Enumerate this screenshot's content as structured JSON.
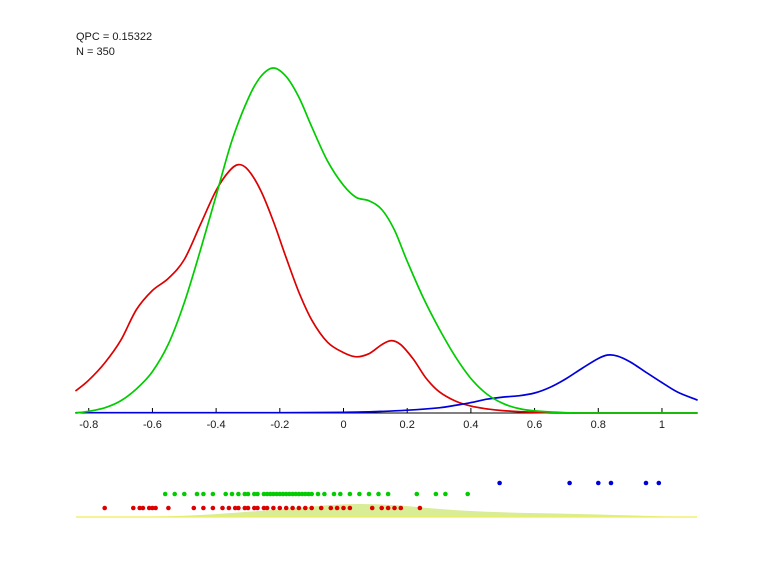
{
  "annotation": {
    "line1": "QPC = 0.15322",
    "line2": "N = 350"
  },
  "chart_data": [
    {
      "type": "line",
      "title": "",
      "xlabel": "",
      "ylabel": "",
      "grid": false,
      "legend": null,
      "xlim": [
        -0.84,
        1.11
      ],
      "ylim": [
        0,
        1.08
      ],
      "x_ticks": [
        -0.8,
        -0.6,
        -0.4,
        -0.2,
        0,
        0.2,
        0.4,
        0.6,
        0.8,
        1
      ],
      "x_tick_labels": [
        "-0.8",
        "-0.6",
        "-0.4",
        "-0.2",
        "0",
        "0.2",
        "0.4",
        "0.6",
        "0.8",
        "1"
      ],
      "axis_color": "#000000",
      "series": [
        {
          "name": "green-kde",
          "color": "#00cc00",
          "x": [
            -0.84,
            -0.8,
            -0.75,
            -0.7,
            -0.65,
            -0.6,
            -0.55,
            -0.5,
            -0.45,
            -0.4,
            -0.35,
            -0.3,
            -0.26,
            -0.22,
            -0.18,
            -0.14,
            -0.1,
            -0.05,
            0.0,
            0.04,
            0.08,
            0.12,
            0.16,
            0.2,
            0.25,
            0.3,
            0.35,
            0.4,
            0.45,
            0.5,
            0.55,
            0.6,
            0.7,
            0.8,
            0.9,
            1.0,
            1.11
          ],
          "y": [
            0.0,
            0.005,
            0.015,
            0.035,
            0.07,
            0.12,
            0.2,
            0.32,
            0.47,
            0.63,
            0.79,
            0.91,
            0.975,
            1.0,
            0.975,
            0.915,
            0.83,
            0.73,
            0.66,
            0.625,
            0.615,
            0.59,
            0.53,
            0.44,
            0.335,
            0.245,
            0.165,
            0.1,
            0.055,
            0.028,
            0.013,
            0.006,
            0.001,
            0.0,
            0.0,
            0.0,
            0.0
          ]
        },
        {
          "name": "red-kde",
          "color": "#dd0000",
          "x": [
            -0.84,
            -0.8,
            -0.75,
            -0.7,
            -0.65,
            -0.6,
            -0.55,
            -0.5,
            -0.45,
            -0.4,
            -0.36,
            -0.33,
            -0.3,
            -0.26,
            -0.22,
            -0.18,
            -0.14,
            -0.1,
            -0.05,
            0.0,
            0.04,
            0.08,
            0.12,
            0.15,
            0.18,
            0.22,
            0.26,
            0.3,
            0.35,
            0.4,
            0.45,
            0.5,
            0.6,
            0.7,
            0.8,
            1.11
          ],
          "y": [
            0.065,
            0.095,
            0.145,
            0.21,
            0.3,
            0.355,
            0.39,
            0.445,
            0.545,
            0.645,
            0.7,
            0.72,
            0.705,
            0.645,
            0.555,
            0.45,
            0.35,
            0.27,
            0.205,
            0.175,
            0.163,
            0.172,
            0.198,
            0.21,
            0.198,
            0.155,
            0.1,
            0.062,
            0.035,
            0.02,
            0.012,
            0.007,
            0.002,
            0.0,
            0.0,
            0.0
          ]
        },
        {
          "name": "blue-kde",
          "color": "#0000dd",
          "x": [
            -0.84,
            -0.6,
            -0.4,
            -0.2,
            0.0,
            0.1,
            0.2,
            0.3,
            0.35,
            0.4,
            0.45,
            0.5,
            0.55,
            0.6,
            0.65,
            0.7,
            0.75,
            0.8,
            0.83,
            0.86,
            0.9,
            0.95,
            1.0,
            1.05,
            1.11
          ],
          "y": [
            0.001,
            0.001,
            0.001,
            0.001,
            0.002,
            0.004,
            0.008,
            0.015,
            0.022,
            0.03,
            0.04,
            0.046,
            0.05,
            0.058,
            0.075,
            0.1,
            0.13,
            0.158,
            0.168,
            0.165,
            0.148,
            0.118,
            0.088,
            0.06,
            0.038
          ]
        }
      ]
    },
    {
      "type": "scatter",
      "name": "rug-strip",
      "xlim": [
        -0.84,
        1.11
      ],
      "baseline_color": "#eeee55",
      "fill_color": "#d9ec96",
      "fill_series": {
        "x": [
          -0.84,
          -0.7,
          -0.6,
          -0.5,
          -0.4,
          -0.3,
          -0.2,
          -0.1,
          -0.05,
          0.0,
          0.05,
          0.1,
          0.15,
          0.2,
          0.3,
          0.4,
          0.5,
          0.6,
          0.7,
          0.8,
          0.9,
          1.0,
          1.11
        ],
        "y": [
          0.0,
          0.01,
          0.04,
          0.1,
          0.22,
          0.4,
          0.6,
          0.8,
          0.9,
          0.97,
          1.0,
          0.98,
          0.92,
          0.84,
          0.62,
          0.46,
          0.36,
          0.3,
          0.25,
          0.19,
          0.12,
          0.05,
          0.01
        ]
      },
      "dot_series": [
        {
          "name": "blue-rug",
          "color": "#0000dd",
          "row": 0,
          "x": [
            0.49,
            0.71,
            0.8,
            0.84,
            0.95,
            0.99
          ]
        },
        {
          "name": "green-rug",
          "color": "#00cc00",
          "row": 1,
          "x": [
            -0.56,
            -0.53,
            -0.5,
            -0.46,
            -0.44,
            -0.41,
            -0.37,
            -0.35,
            -0.33,
            -0.31,
            -0.3,
            -0.28,
            -0.27,
            -0.25,
            -0.24,
            -0.23,
            -0.22,
            -0.21,
            -0.2,
            -0.19,
            -0.18,
            -0.17,
            -0.16,
            -0.15,
            -0.14,
            -0.13,
            -0.12,
            -0.11,
            -0.1,
            -0.08,
            -0.06,
            -0.03,
            -0.01,
            0.02,
            0.05,
            0.08,
            0.11,
            0.14,
            0.23,
            0.29,
            0.32,
            0.39
          ]
        },
        {
          "name": "red-rug",
          "color": "#dd0000",
          "row": 2,
          "x": [
            -0.75,
            -0.66,
            -0.64,
            -0.63,
            -0.61,
            -0.6,
            -0.59,
            -0.55,
            -0.47,
            -0.44,
            -0.41,
            -0.38,
            -0.36,
            -0.34,
            -0.33,
            -0.31,
            -0.3,
            -0.28,
            -0.27,
            -0.25,
            -0.24,
            -0.22,
            -0.2,
            -0.18,
            -0.16,
            -0.14,
            -0.12,
            -0.1,
            -0.07,
            -0.04,
            -0.02,
            0.0,
            0.02,
            0.09,
            0.12,
            0.14,
            0.16,
            0.18,
            0.24
          ]
        }
      ]
    }
  ]
}
